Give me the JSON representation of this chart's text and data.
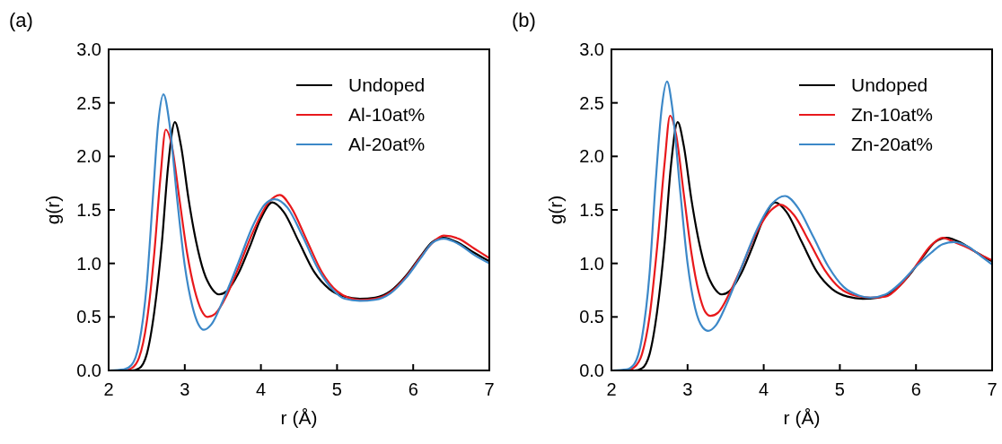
{
  "chart_data": [
    {
      "type": "line",
      "title": "(a)",
      "xlabel": "r (Å)",
      "ylabel": "g(r)",
      "xlim": [
        2,
        7
      ],
      "ylim": [
        0,
        3
      ],
      "xticks": [
        2,
        3,
        4,
        5,
        6,
        7
      ],
      "yticks": [
        {
          "value": 0,
          "label": "0.0"
        },
        0.5,
        {
          "value": 1,
          "label": "1.0"
        },
        1.5,
        {
          "value": 2,
          "label": "2.0"
        },
        2.5,
        {
          "value": 3,
          "label": "3.0"
        }
      ],
      "legend": "top right",
      "grid": false,
      "series": [
        {
          "name": "Undoped",
          "color": "#000000",
          "x": [
            2,
            2.3,
            2.4,
            2.5,
            2.6,
            2.7,
            2.78,
            2.87,
            2.95,
            3.05,
            3.15,
            3.25,
            3.35,
            3.45,
            3.55,
            3.7,
            3.85,
            4.0,
            4.15,
            4.3,
            4.5,
            4.7,
            4.9,
            5.1,
            5.3,
            5.5,
            5.7,
            5.9,
            6.1,
            6.25,
            6.4,
            6.6,
            6.8,
            7.0
          ],
          "values": [
            0,
            0,
            0.02,
            0.15,
            0.55,
            1.2,
            1.9,
            2.32,
            2.1,
            1.6,
            1.2,
            0.92,
            0.77,
            0.71,
            0.74,
            0.9,
            1.15,
            1.42,
            1.57,
            1.48,
            1.2,
            0.92,
            0.76,
            0.69,
            0.67,
            0.68,
            0.74,
            0.88,
            1.07,
            1.2,
            1.24,
            1.19,
            1.1,
            1.02
          ]
        },
        {
          "name": "Al-10at%",
          "color": "#e8191c",
          "x": [
            2,
            2.2,
            2.3,
            2.4,
            2.5,
            2.6,
            2.68,
            2.75,
            2.83,
            2.93,
            3.03,
            3.13,
            3.22,
            3.3,
            3.4,
            3.55,
            3.7,
            3.9,
            4.1,
            4.25,
            4.4,
            4.6,
            4.8,
            5.0,
            5.15,
            5.3,
            5.5,
            5.7,
            5.9,
            6.1,
            6.25,
            6.4,
            6.6,
            6.8,
            7
          ],
          "values": [
            0,
            0,
            0.02,
            0.12,
            0.45,
            1.1,
            1.8,
            2.25,
            2.1,
            1.6,
            1.1,
            0.75,
            0.56,
            0.5,
            0.53,
            0.7,
            0.95,
            1.3,
            1.57,
            1.64,
            1.52,
            1.22,
            0.92,
            0.74,
            0.68,
            0.66,
            0.67,
            0.73,
            0.87,
            1.06,
            1.19,
            1.26,
            1.23,
            1.14,
            1.05
          ]
        },
        {
          "name": "Al-20at%",
          "color": "#3c88c8",
          "x": [
            2,
            2.2,
            2.3,
            2.4,
            2.5,
            2.58,
            2.65,
            2.72,
            2.8,
            2.9,
            3.0,
            3.1,
            3.18,
            3.25,
            3.35,
            3.5,
            3.7,
            3.9,
            4.05,
            4.18,
            4.35,
            4.55,
            4.75,
            4.95,
            5.1,
            5.3,
            5.5,
            5.7,
            5.9,
            6.1,
            6.25,
            6.4,
            6.6,
            6.8,
            7
          ],
          "values": [
            0,
            0.01,
            0.05,
            0.25,
            0.8,
            1.6,
            2.3,
            2.58,
            2.3,
            1.6,
            0.98,
            0.6,
            0.43,
            0.38,
            0.43,
            0.65,
            1.0,
            1.36,
            1.55,
            1.6,
            1.52,
            1.25,
            0.95,
            0.75,
            0.67,
            0.65,
            0.66,
            0.72,
            0.86,
            1.05,
            1.19,
            1.23,
            1.18,
            1.08,
            1.0
          ]
        }
      ]
    },
    {
      "type": "line",
      "title": "(b)",
      "xlabel": "r (Å)",
      "ylabel": "g(r)",
      "xlim": [
        2,
        7
      ],
      "ylim": [
        0,
        3
      ],
      "xticks": [
        2,
        3,
        4,
        5,
        6,
        7
      ],
      "yticks": [
        {
          "value": 0,
          "label": "0.0"
        },
        0.5,
        {
          "value": 1,
          "label": "1.0"
        },
        1.5,
        {
          "value": 2,
          "label": "2.0"
        },
        2.5,
        {
          "value": 3,
          "label": "3.0"
        }
      ],
      "legend": "top right",
      "grid": false,
      "series": [
        {
          "name": "Undoped",
          "color": "#000000",
          "x": [
            2,
            2.3,
            2.4,
            2.5,
            2.6,
            2.7,
            2.78,
            2.87,
            2.95,
            3.05,
            3.15,
            3.25,
            3.35,
            3.45,
            3.55,
            3.7,
            3.85,
            4.0,
            4.15,
            4.3,
            4.5,
            4.7,
            4.9,
            5.1,
            5.3,
            5.5,
            5.7,
            5.9,
            6.1,
            6.25,
            6.4,
            6.6,
            6.8,
            7.0
          ],
          "values": [
            0,
            0,
            0.02,
            0.15,
            0.55,
            1.2,
            1.9,
            2.32,
            2.1,
            1.6,
            1.2,
            0.92,
            0.77,
            0.71,
            0.74,
            0.9,
            1.15,
            1.42,
            1.57,
            1.48,
            1.2,
            0.92,
            0.76,
            0.69,
            0.67,
            0.68,
            0.74,
            0.88,
            1.07,
            1.2,
            1.24,
            1.19,
            1.1,
            1.02
          ]
        },
        {
          "name": "Zn-10at%",
          "color": "#e8191c",
          "x": [
            2,
            2.2,
            2.3,
            2.4,
            2.5,
            2.6,
            2.7,
            2.77,
            2.85,
            2.95,
            3.05,
            3.15,
            3.23,
            3.3,
            3.4,
            3.55,
            3.7,
            3.9,
            4.1,
            4.22,
            4.4,
            4.6,
            4.8,
            5.0,
            5.2,
            5.4,
            5.6,
            5.8,
            6.0,
            6.2,
            6.35,
            6.5,
            6.7,
            6.85,
            7
          ],
          "values": [
            0,
            0,
            0.03,
            0.15,
            0.5,
            1.15,
            1.95,
            2.38,
            2.2,
            1.65,
            1.1,
            0.72,
            0.55,
            0.51,
            0.54,
            0.72,
            0.95,
            1.28,
            1.5,
            1.55,
            1.45,
            1.2,
            0.94,
            0.77,
            0.7,
            0.68,
            0.69,
            0.8,
            0.98,
            1.17,
            1.24,
            1.2,
            1.14,
            1.08,
            1.03
          ]
        },
        {
          "name": "Zn-20at%",
          "color": "#3c88c8",
          "x": [
            2,
            2.2,
            2.3,
            2.4,
            2.5,
            2.58,
            2.66,
            2.73,
            2.8,
            2.9,
            3.0,
            3.1,
            3.2,
            3.27,
            3.37,
            3.5,
            3.7,
            3.9,
            4.1,
            4.28,
            4.45,
            4.65,
            4.85,
            5.05,
            5.25,
            5.4,
            5.6,
            5.8,
            6.0,
            6.2,
            6.35,
            6.5,
            6.7,
            6.85,
            7
          ],
          "values": [
            0,
            0.01,
            0.06,
            0.3,
            0.9,
            1.75,
            2.45,
            2.7,
            2.45,
            1.7,
            1.0,
            0.58,
            0.4,
            0.37,
            0.42,
            0.6,
            0.95,
            1.3,
            1.55,
            1.63,
            1.52,
            1.25,
            0.97,
            0.78,
            0.7,
            0.68,
            0.71,
            0.82,
            0.97,
            1.1,
            1.18,
            1.2,
            1.15,
            1.07,
            0.99
          ]
        }
      ]
    }
  ]
}
